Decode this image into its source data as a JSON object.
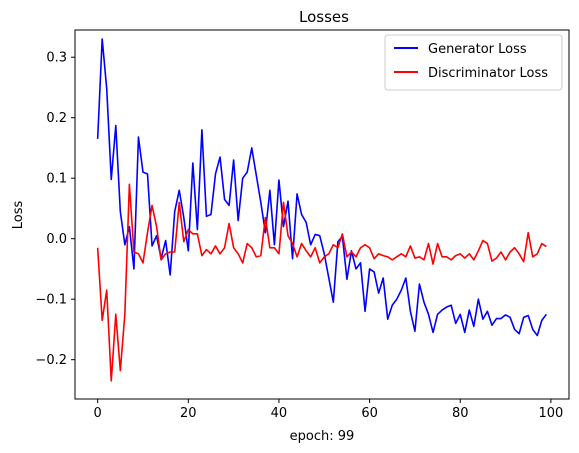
{
  "chart_data": {
    "type": "line",
    "title": "Losses",
    "xlabel": "epoch: 99",
    "ylabel": "Loss",
    "xlim": [
      -5,
      104
    ],
    "ylim": [
      -0.265,
      0.345
    ],
    "xticks": [
      0,
      20,
      40,
      60,
      80,
      100
    ],
    "yticks": [
      -0.2,
      -0.1,
      0.0,
      0.1,
      0.2,
      0.3
    ],
    "ytick_labels": [
      "−0.2",
      "−0.1",
      "0.0",
      "0.1",
      "0.2",
      "0.3"
    ],
    "grid": false,
    "legend_position": "upper right",
    "series": [
      {
        "name": "Generator Loss",
        "color": "#0000ff",
        "x": [
          0,
          1,
          2,
          3,
          4,
          5,
          6,
          7,
          8,
          9,
          10,
          11,
          12,
          13,
          14,
          15,
          16,
          17,
          18,
          19,
          20,
          21,
          22,
          23,
          24,
          25,
          26,
          27,
          28,
          29,
          30,
          31,
          32,
          33,
          34,
          35,
          36,
          37,
          38,
          39,
          40,
          41,
          42,
          43,
          44,
          45,
          46,
          47,
          48,
          49,
          50,
          51,
          52,
          53,
          54,
          55,
          56,
          57,
          58,
          59,
          60,
          61,
          62,
          63,
          64,
          65,
          66,
          67,
          68,
          69,
          70,
          71,
          72,
          73,
          74,
          75,
          76,
          77,
          78,
          79,
          80,
          81,
          82,
          83,
          84,
          85,
          86,
          87,
          88,
          89,
          90,
          91,
          92,
          93,
          94,
          95,
          96,
          97,
          98,
          99
        ],
        "values": [
          0.165,
          0.33,
          0.248,
          0.098,
          0.187,
          0.045,
          -0.01,
          0.02,
          -0.05,
          0.168,
          0.11,
          0.107,
          -0.012,
          0.005,
          -0.033,
          -0.003,
          -0.06,
          0.045,
          0.08,
          0.035,
          -0.02,
          0.125,
          0.015,
          0.18,
          0.037,
          0.04,
          0.107,
          0.135,
          0.065,
          0.055,
          0.13,
          0.03,
          0.1,
          0.11,
          0.15,
          0.105,
          0.06,
          0.01,
          0.08,
          -0.01,
          0.097,
          0.02,
          0.062,
          -0.033,
          0.074,
          0.04,
          0.027,
          -0.01,
          0.007,
          0.005,
          -0.025,
          -0.065,
          -0.105,
          -0.005,
          0.004,
          -0.067,
          -0.02,
          -0.05,
          -0.04,
          -0.12,
          -0.05,
          -0.055,
          -0.09,
          -0.065,
          -0.133,
          -0.11,
          -0.1,
          -0.085,
          -0.065,
          -0.12,
          -0.153,
          -0.075,
          -0.105,
          -0.125,
          -0.155,
          -0.125,
          -0.118,
          -0.113,
          -0.11,
          -0.14,
          -0.125,
          -0.155,
          -0.118,
          -0.145,
          -0.1,
          -0.133,
          -0.12,
          -0.143,
          -0.132,
          -0.132,
          -0.126,
          -0.13,
          -0.15,
          -0.157,
          -0.13,
          -0.127,
          -0.15,
          -0.16,
          -0.135,
          -0.125
        ]
      },
      {
        "name": "Discriminator Loss",
        "color": "#ff0000",
        "x": [
          0,
          1,
          2,
          3,
          4,
          5,
          6,
          7,
          8,
          9,
          10,
          11,
          12,
          13,
          14,
          15,
          16,
          17,
          18,
          19,
          20,
          21,
          22,
          23,
          24,
          25,
          26,
          27,
          28,
          29,
          30,
          31,
          32,
          33,
          34,
          35,
          36,
          37,
          38,
          39,
          40,
          41,
          42,
          43,
          44,
          45,
          46,
          47,
          48,
          49,
          50,
          51,
          52,
          53,
          54,
          55,
          56,
          57,
          58,
          59,
          60,
          61,
          62,
          63,
          64,
          65,
          66,
          67,
          68,
          69,
          70,
          71,
          72,
          73,
          74,
          75,
          76,
          77,
          78,
          79,
          80,
          81,
          82,
          83,
          84,
          85,
          86,
          87,
          88,
          89,
          90,
          91,
          92,
          93,
          94,
          95,
          96,
          97,
          98,
          99
        ],
        "values": [
          -0.015,
          -0.135,
          -0.085,
          -0.235,
          -0.125,
          -0.218,
          -0.125,
          0.09,
          -0.022,
          -0.025,
          -0.04,
          0.01,
          0.055,
          0.02,
          -0.035,
          -0.025,
          -0.022,
          -0.022,
          0.06,
          -0.005,
          0.015,
          0.008,
          0.008,
          -0.028,
          -0.018,
          -0.025,
          -0.012,
          -0.025,
          -0.015,
          0.025,
          -0.015,
          -0.025,
          -0.04,
          -0.008,
          -0.015,
          -0.03,
          -0.028,
          0.035,
          -0.015,
          -0.015,
          -0.025,
          0.06,
          0.005,
          -0.008,
          -0.03,
          -0.008,
          -0.02,
          -0.03,
          -0.015,
          -0.04,
          -0.03,
          -0.025,
          -0.01,
          -0.015,
          0.008,
          -0.03,
          -0.022,
          -0.03,
          -0.015,
          -0.01,
          -0.015,
          -0.033,
          -0.025,
          -0.028,
          -0.03,
          -0.035,
          -0.03,
          -0.025,
          -0.03,
          -0.012,
          -0.032,
          -0.03,
          -0.035,
          -0.008,
          -0.042,
          -0.008,
          -0.03,
          -0.03,
          -0.035,
          -0.028,
          -0.025,
          -0.032,
          -0.025,
          -0.035,
          -0.02,
          -0.003,
          -0.008,
          -0.037,
          -0.032,
          -0.022,
          -0.035,
          -0.022,
          -0.015,
          -0.025,
          -0.038,
          0.01,
          -0.03,
          -0.025,
          -0.008,
          -0.013
        ]
      }
    ]
  }
}
